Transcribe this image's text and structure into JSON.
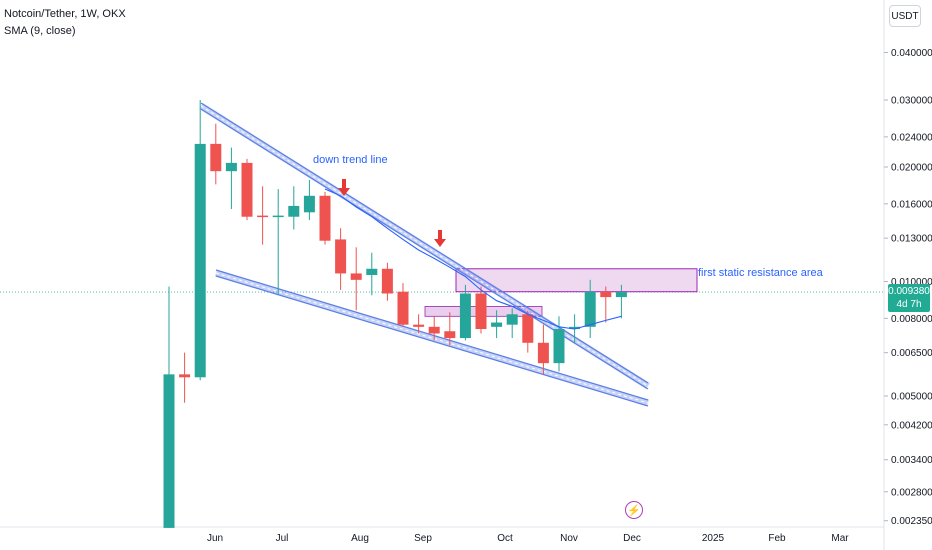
{
  "header": {
    "symbol": "Notcoin/Tether, 1W, OKX",
    "indicator": "SMA (9, close)"
  },
  "axis": {
    "unit": "USDT",
    "current_price": "0.009380",
    "countdown": "4d 7h"
  },
  "chart_data": {
    "type": "candlestick",
    "title": "Notcoin/Tether, 1W, OKX",
    "y_scale": "log",
    "y_ticks": [
      "0.040000",
      "0.030000",
      "0.024000",
      "0.020000",
      "0.016000",
      "0.013000",
      "0.010000",
      "0.008000",
      "0.006500",
      "0.005000",
      "0.004200",
      "0.003400",
      "0.002800",
      "0.002350"
    ],
    "x_ticks": [
      "Jun",
      "Jul",
      "Aug",
      "Sep",
      "Oct",
      "Nov",
      "Dec",
      "2025",
      "Feb",
      "Mar"
    ],
    "candles": [
      {
        "o": 0.00225,
        "h": 0.0097,
        "l": 0.00225,
        "c": 0.0057
      },
      {
        "o": 0.0057,
        "h": 0.0065,
        "l": 0.0048,
        "c": 0.0056
      },
      {
        "o": 0.0056,
        "h": 0.03,
        "l": 0.0055,
        "c": 0.023
      },
      {
        "o": 0.023,
        "h": 0.026,
        "l": 0.018,
        "c": 0.0195
      },
      {
        "o": 0.0195,
        "h": 0.0225,
        "l": 0.0155,
        "c": 0.0205
      },
      {
        "o": 0.0205,
        "h": 0.021,
        "l": 0.0145,
        "c": 0.0148
      },
      {
        "o": 0.0149,
        "h": 0.0178,
        "l": 0.0125,
        "c": 0.0148
      },
      {
        "o": 0.0148,
        "h": 0.0175,
        "l": 0.0092,
        "c": 0.0149
      },
      {
        "o": 0.0148,
        "h": 0.0178,
        "l": 0.0137,
        "c": 0.0158
      },
      {
        "o": 0.0152,
        "h": 0.0185,
        "l": 0.0145,
        "c": 0.0168
      },
      {
        "o": 0.0168,
        "h": 0.0172,
        "l": 0.0125,
        "c": 0.0128
      },
      {
        "o": 0.0129,
        "h": 0.0138,
        "l": 0.0095,
        "c": 0.0105
      },
      {
        "o": 0.0105,
        "h": 0.0123,
        "l": 0.0084,
        "c": 0.0101
      },
      {
        "o": 0.0104,
        "h": 0.0119,
        "l": 0.0092,
        "c": 0.0108
      },
      {
        "o": 0.0108,
        "h": 0.0112,
        "l": 0.0089,
        "c": 0.0093
      },
      {
        "o": 0.0094,
        "h": 0.0099,
        "l": 0.0076,
        "c": 0.0077
      },
      {
        "o": 0.0077,
        "h": 0.0082,
        "l": 0.0073,
        "c": 0.0076
      },
      {
        "o": 0.0076,
        "h": 0.0081,
        "l": 0.007,
        "c": 0.0073
      },
      {
        "o": 0.0074,
        "h": 0.0083,
        "l": 0.0068,
        "c": 0.0071
      },
      {
        "o": 0.0071,
        "h": 0.0098,
        "l": 0.007,
        "c": 0.0093
      },
      {
        "o": 0.0093,
        "h": 0.0097,
        "l": 0.0073,
        "c": 0.0075
      },
      {
        "o": 0.0076,
        "h": 0.0084,
        "l": 0.0071,
        "c": 0.0078
      },
      {
        "o": 0.0077,
        "h": 0.0085,
        "l": 0.0071,
        "c": 0.0082
      },
      {
        "o": 0.0082,
        "h": 0.0084,
        "l": 0.0065,
        "c": 0.0069
      },
      {
        "o": 0.0069,
        "h": 0.0077,
        "l": 0.0057,
        "c": 0.0061
      },
      {
        "o": 0.0061,
        "h": 0.0081,
        "l": 0.0058,
        "c": 0.0075
      },
      {
        "o": 0.0075,
        "h": 0.0082,
        "l": 0.0069,
        "c": 0.0076
      },
      {
        "o": 0.0076,
        "h": 0.0101,
        "l": 0.0071,
        "c": 0.0094
      },
      {
        "o": 0.0094,
        "h": 0.0097,
        "l": 0.0078,
        "c": 0.0091
      },
      {
        "o": 0.0091,
        "h": 0.0098,
        "l": 0.008,
        "c": 0.00938
      }
    ],
    "sma": [
      0.0175,
      0.0168,
      0.0157,
      0.0148,
      0.0138,
      0.0129,
      0.0121,
      0.0115,
      0.0109,
      0.0103,
      0.0095,
      0.0089,
      0.0086,
      0.0082,
      0.0079,
      0.0076,
      0.0075,
      0.0077,
      0.0079,
      0.0081
    ],
    "annotations": {
      "trend_label": "down trend line",
      "resistance_label": "first static resistance area"
    },
    "colors": {
      "up": "#26a69a",
      "down": "#ef5350",
      "sma": "#2962ff",
      "channel": "#5b7ee5",
      "zone": "#ce93d8",
      "arrow": "#e53935"
    }
  }
}
